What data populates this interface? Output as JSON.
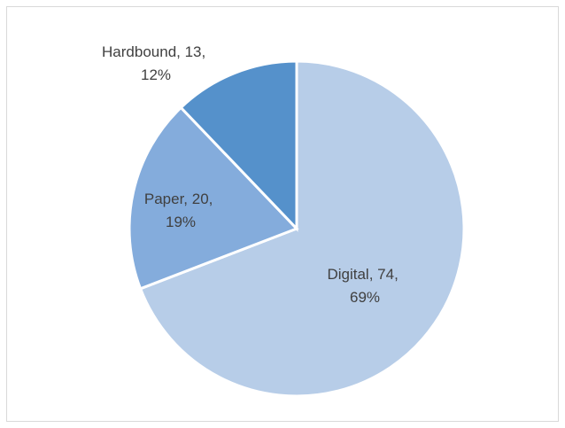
{
  "chart_data": {
    "type": "pie",
    "title": "",
    "categories": [
      "Digital",
      "Paper",
      "Hardbound"
    ],
    "values": [
      74,
      20,
      13
    ],
    "percentages": [
      "69%",
      "19%",
      "12%"
    ],
    "colors": [
      "#b7cde8",
      "#84acdc",
      "#5591cb"
    ],
    "legend": "none",
    "labels": [
      {
        "line1": "Digital, 74,",
        "line2": "69%"
      },
      {
        "line1": "Paper, 20,",
        "line2": "19%"
      },
      {
        "line1": "Hardbound, 13,",
        "line2": "12%"
      }
    ]
  }
}
